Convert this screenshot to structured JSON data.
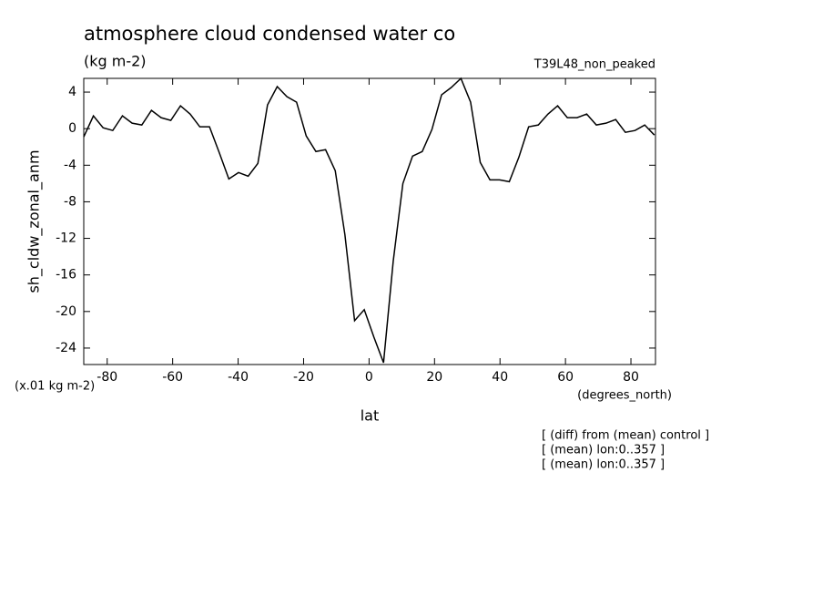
{
  "chart_data": {
    "type": "line",
    "title": "atmosphere cloud condensed water co",
    "subtitle": "(kg m-2)",
    "experiment": "T39L48_non_peaked",
    "y_label": "sh_cldw_zonal_anm",
    "y_units": "(x.01 kg m-2)",
    "x_label": "lat",
    "x_units": "(degrees_north)",
    "notes": [
      "[ (diff) from (mean) control ]",
      "[ (mean) lon:0..357 ]",
      "[ (mean) lon:0..357 ]"
    ],
    "xlim": [
      -87.16,
      87.5
    ],
    "xticks": [
      -80,
      -60,
      -40,
      -20,
      0,
      20,
      40,
      60,
      80
    ],
    "ylim": [
      -25.8,
      5.5
    ],
    "yticks": [
      4,
      0,
      -4,
      -8,
      -12,
      -16,
      -20,
      -24
    ],
    "x": [
      -87.16,
      -84.21,
      -81.25,
      -78.3,
      -75.34,
      -72.39,
      -69.43,
      -66.48,
      -63.52,
      -60.57,
      -57.61,
      -54.66,
      -51.7,
      -48.75,
      -45.79,
      -42.84,
      -39.88,
      -36.93,
      -33.97,
      -31.02,
      -28.06,
      -25.11,
      -22.15,
      -19.2,
      -16.24,
      -13.29,
      -10.33,
      -7.38,
      -4.42,
      -1.47,
      1.47,
      4.42,
      7.38,
      10.33,
      13.29,
      16.24,
      19.2,
      22.15,
      25.11,
      28.06,
      31.02,
      33.97,
      36.93,
      39.88,
      42.84,
      45.79,
      48.75,
      51.7,
      54.66,
      57.61,
      60.57,
      63.52,
      66.48,
      69.43,
      72.39,
      75.34,
      78.3,
      81.25,
      84.21,
      87.16
    ],
    "series": [
      {
        "color": "#000000",
        "values": [
          -0.9,
          1.4,
          0.1,
          -0.2,
          1.4,
          0.6,
          0.4,
          2.0,
          1.2,
          0.9,
          2.5,
          1.6,
          0.2,
          0.2,
          -2.6,
          -5.5,
          -4.8,
          -5.2,
          -3.8,
          2.6,
          4.6,
          3.5,
          2.9,
          -0.8,
          -2.5,
          -2.3,
          -4.6,
          -11.6,
          -21,
          -19.8,
          -22.8,
          -25.6,
          -14.5,
          -6,
          -3,
          -2.5,
          -0.1,
          3.7,
          4.5,
          5.5,
          2.9,
          -3.7,
          -5.6,
          -5.6,
          -5.8,
          -3.1,
          0.2,
          0.4,
          1.6,
          2.5,
          1.2,
          1.2,
          1.6,
          0.4,
          0.6,
          1.0,
          -0.4,
          -0.2,
          0.4,
          -0.7
        ]
      }
    ]
  }
}
